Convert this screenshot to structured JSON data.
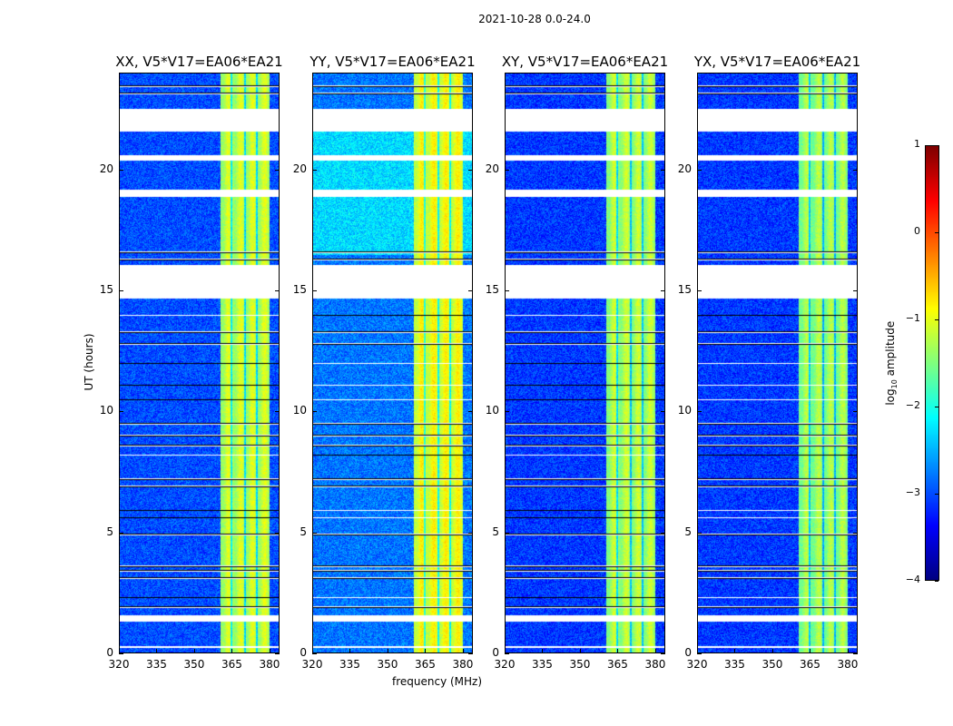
{
  "chart_data": {
    "type": "heatmap",
    "title": "2021-10-28 0.0-24.0",
    "xlabel": "frequency (MHz)",
    "ylabel": "UT (hours)",
    "xlim": [
      320,
      384
    ],
    "ylim": [
      0,
      24
    ],
    "xticks": [
      320,
      335,
      350,
      365,
      380
    ],
    "yticks": [
      0,
      5,
      10,
      15,
      20
    ],
    "panels": [
      {
        "title": "XX, V5*V17=EA06*EA21",
        "background_log_amp": -3.0,
        "band_log_amp": -1.2
      },
      {
        "title": "YY, V5*V17=EA06*EA21",
        "background_log_amp": -2.8,
        "band_log_amp": -1.0
      },
      {
        "title": "XY, V5*V17=EA06*EA21",
        "background_log_amp": -3.1,
        "band_log_amp": -1.3
      },
      {
        "title": "YX, V5*V17=EA06*EA21",
        "background_log_amp": -3.1,
        "band_log_amp": -1.4
      }
    ],
    "bright_band_mhz": [
      360.5,
      380
    ],
    "band_dark_channels_mhz": [
      364.8,
      370.2,
      374.9
    ],
    "flagged_gaps_hours": [
      [
        21.63,
        22.57
      ],
      [
        20.4,
        20.65
      ],
      [
        18.9,
        19.2
      ],
      [
        14.7,
        16.1
      ],
      [
        1.3,
        1.55
      ],
      [
        0.2,
        0.3
      ]
    ],
    "thin_flag_rows_hours": [
      23.2,
      23.5,
      16.3,
      16.6,
      14.0,
      13.3,
      12.8,
      12.0,
      11.1,
      10.5,
      9.5,
      9.0,
      8.6,
      8.2,
      7.2,
      6.9,
      5.9,
      5.6,
      4.9,
      3.6,
      3.4,
      3.1,
      2.3,
      1.9
    ],
    "colorbar": {
      "label": "log10 amplitude",
      "range": [
        -4,
        1
      ],
      "ticks": [
        1,
        0,
        -1,
        -2,
        -3,
        -4
      ],
      "colormap": "jet"
    }
  },
  "labels": {
    "cbar_log": "log",
    "cbar_sub": "10",
    "cbar_rest": " amplitude"
  }
}
